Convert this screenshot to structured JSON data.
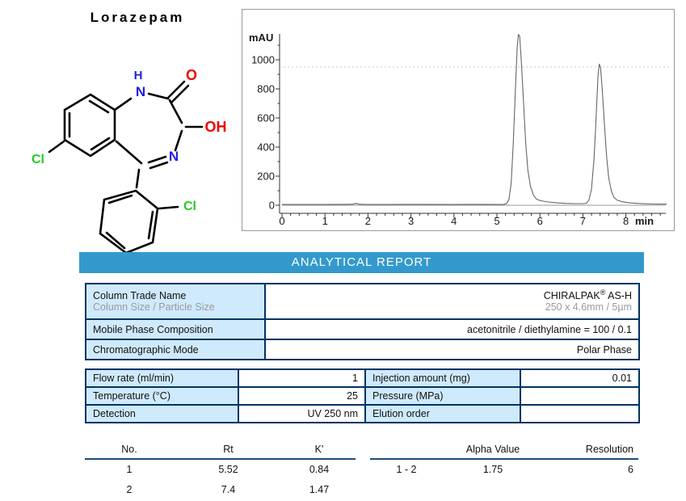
{
  "molecule": {
    "title": "Lorazepam",
    "atoms": [
      {
        "label": "H",
        "color": "#2222dd"
      },
      {
        "label": "N",
        "color": "#2222dd"
      },
      {
        "label": "O",
        "color": "#ee0000"
      },
      {
        "label": "OH",
        "color": "#ee0000"
      },
      {
        "label": "N",
        "color": "#2222dd"
      },
      {
        "label": "Cl",
        "color": "#22cc22"
      },
      {
        "label": "Cl",
        "color": "#22cc22"
      }
    ]
  },
  "chart_data": {
    "type": "line",
    "title": "",
    "xlabel": "min",
    "ylabel": "mAU",
    "xlim": [
      0,
      9
    ],
    "ylim": [
      -60,
      1250
    ],
    "x_ticks": [
      0,
      1,
      2,
      3,
      4,
      5,
      6,
      7,
      8
    ],
    "y_ticks": [
      0,
      200,
      400,
      600,
      800,
      1000
    ],
    "grid": false,
    "threshold_line_mAU": 950,
    "peaks": [
      {
        "no": 1,
        "rt_min": 5.52,
        "height_mAU": 1180
      },
      {
        "no": 2,
        "rt_min": 7.4,
        "height_mAU": 975
      }
    ],
    "trace": [
      [
        0,
        5
      ],
      [
        0.5,
        5
      ],
      [
        1.0,
        5
      ],
      [
        1.5,
        6
      ],
      [
        1.65,
        7
      ],
      [
        1.72,
        13
      ],
      [
        1.78,
        8
      ],
      [
        1.9,
        6
      ],
      [
        2.5,
        5
      ],
      [
        3.2,
        6
      ],
      [
        4.0,
        5
      ],
      [
        4.6,
        6
      ],
      [
        5.0,
        5
      ],
      [
        5.15,
        6
      ],
      [
        5.22,
        10
      ],
      [
        5.28,
        40
      ],
      [
        5.33,
        150
      ],
      [
        5.38,
        420
      ],
      [
        5.43,
        800
      ],
      [
        5.47,
        1080
      ],
      [
        5.5,
        1175
      ],
      [
        5.53,
        1160
      ],
      [
        5.57,
        980
      ],
      [
        5.62,
        700
      ],
      [
        5.67,
        430
      ],
      [
        5.72,
        240
      ],
      [
        5.78,
        130
      ],
      [
        5.85,
        70
      ],
      [
        5.92,
        42
      ],
      [
        6.0,
        33
      ],
      [
        6.08,
        28
      ],
      [
        6.2,
        22
      ],
      [
        6.4,
        16
      ],
      [
        6.6,
        13
      ],
      [
        6.8,
        11
      ],
      [
        7.0,
        11
      ],
      [
        7.08,
        14
      ],
      [
        7.14,
        35
      ],
      [
        7.2,
        110
      ],
      [
        7.26,
        320
      ],
      [
        7.31,
        620
      ],
      [
        7.35,
        880
      ],
      [
        7.38,
        970
      ],
      [
        7.41,
        950
      ],
      [
        7.45,
        800
      ],
      [
        7.5,
        560
      ],
      [
        7.55,
        340
      ],
      [
        7.6,
        190
      ],
      [
        7.66,
        100
      ],
      [
        7.72,
        55
      ],
      [
        7.8,
        34
      ],
      [
        7.9,
        26
      ],
      [
        8.0,
        20
      ],
      [
        8.15,
        15
      ],
      [
        8.3,
        12
      ],
      [
        8.6,
        9
      ],
      [
        8.95,
        8
      ]
    ]
  },
  "banner": {
    "title": "ANALYTICAL REPORT",
    "bg_color": "#3399cc"
  },
  "column_table": {
    "row1": {
      "label_line1": "Column Trade Name",
      "label_line2": "Column Size / Particle Size",
      "value_main": "CHIRALPAK",
      "value_sup": "®",
      "value_rest": " AS-H",
      "value_line2": "250 x 4.6mm / 5µm"
    },
    "row2": {
      "label": "Mobile Phase Composition",
      "value": "acetonitrile / diethylamine = 100 / 0.1"
    },
    "row3": {
      "label": "Chromatographic Mode",
      "value": "Polar Phase"
    }
  },
  "conditions_table": {
    "rows": [
      {
        "l1": "Flow rate (ml/min)",
        "v1": "1",
        "l2": "Injection amount (mg)",
        "v2": "0.01"
      },
      {
        "l1": "Temperature (°C)",
        "v1": "25",
        "l2": "Pressure (MPa)",
        "v2": ""
      },
      {
        "l1": "Detection",
        "v1": "UV 250 nm",
        "l2": "Elution order",
        "v2": ""
      }
    ]
  },
  "results": {
    "left": {
      "headers": [
        "No.",
        "Rt",
        "K'"
      ],
      "rows": [
        [
          "1",
          "5.52",
          "0.84"
        ],
        [
          "2",
          "7.4",
          "1.47"
        ]
      ]
    },
    "right": {
      "headers": [
        "",
        "Alpha Value",
        "Resolution"
      ],
      "rows": [
        [
          "1 - 2",
          "1.75",
          "6"
        ]
      ]
    }
  },
  "colors": {
    "banner_blue": "#3399cc",
    "cell_blue": "#cfeafc",
    "border_navy": "#003366",
    "rule_navy": "#1b4e79",
    "trace_gray": "#666666"
  }
}
